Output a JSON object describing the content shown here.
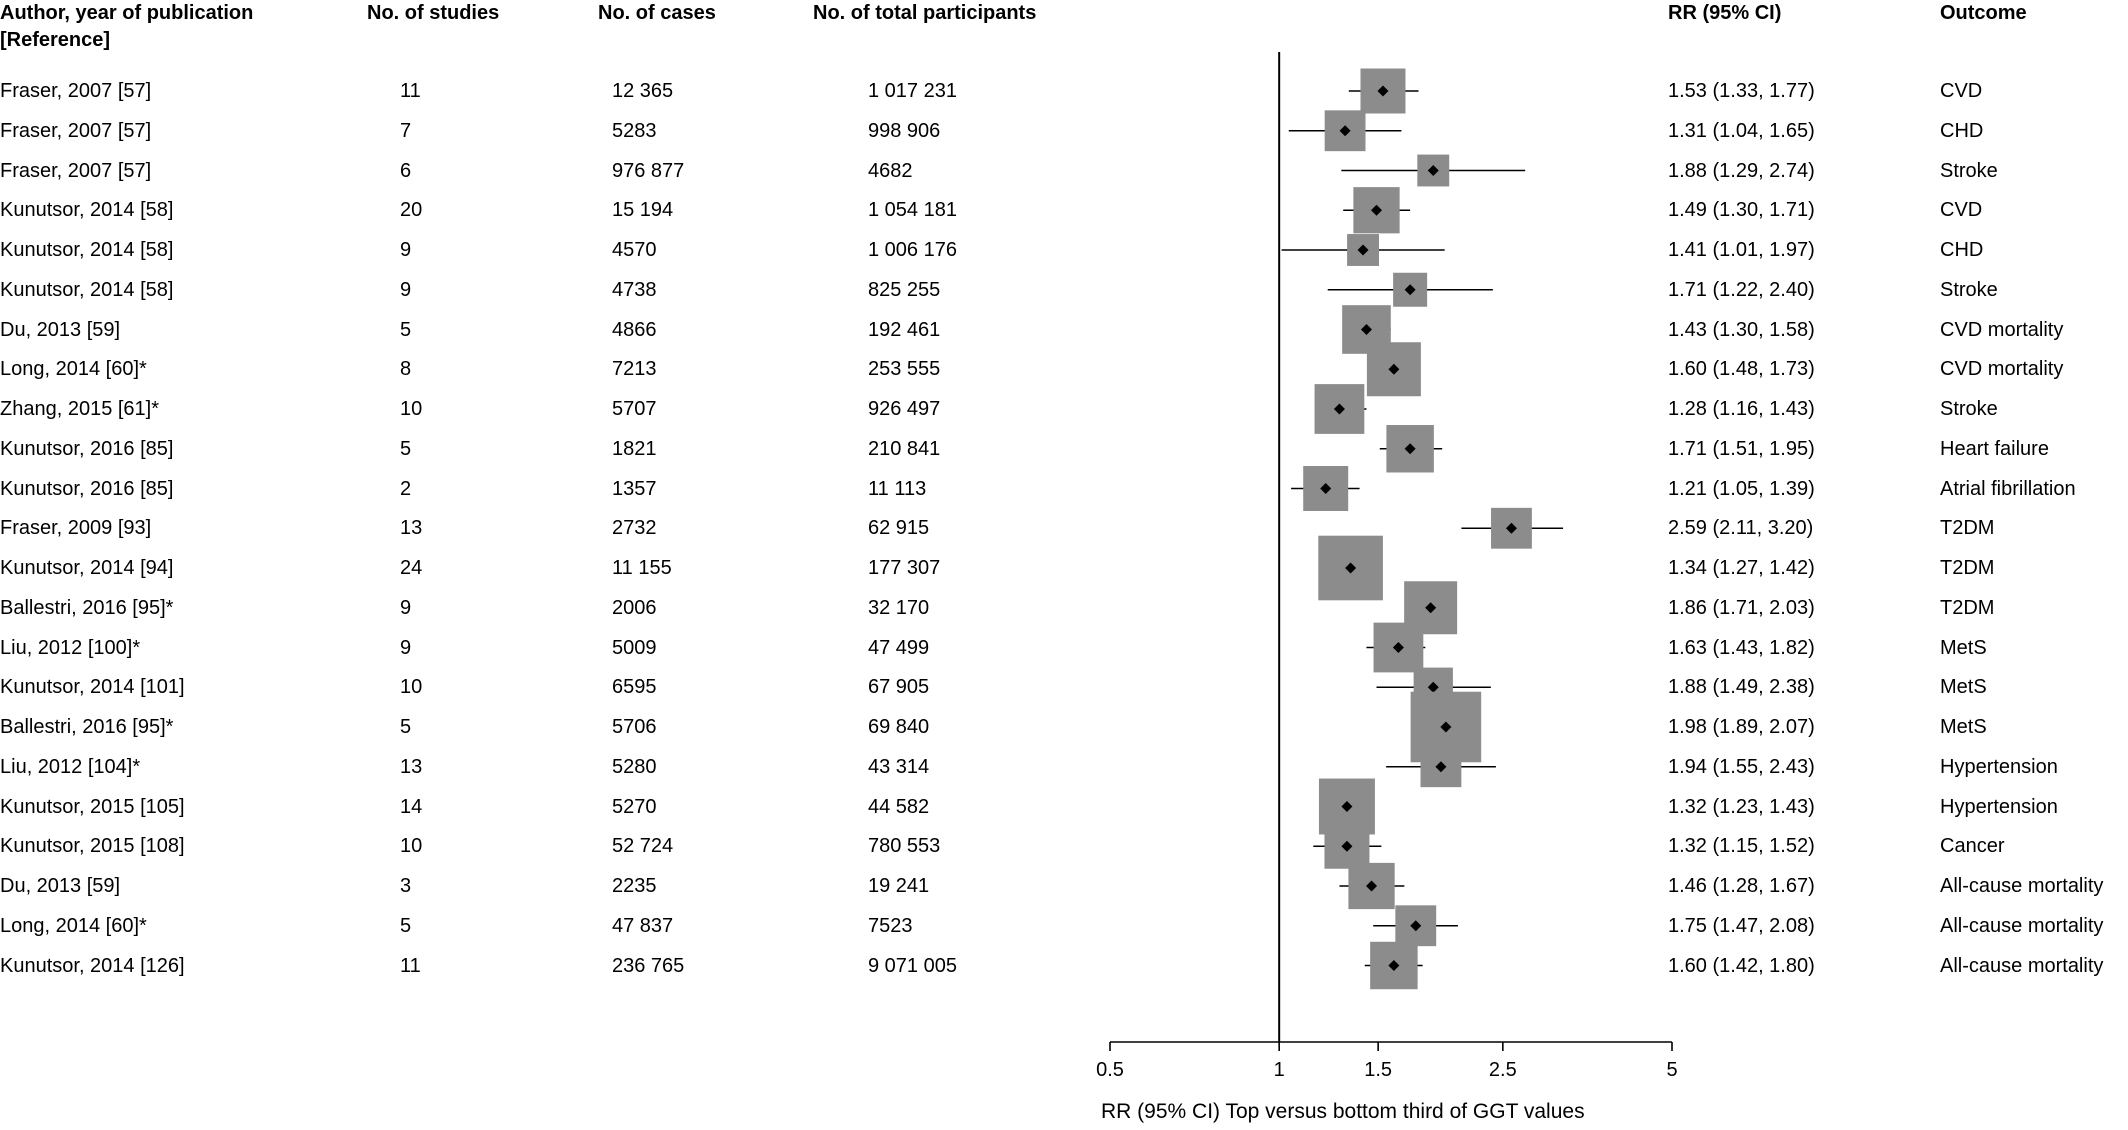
{
  "headers": {
    "author": "Author, year of publication [Reference]",
    "studies": "No. of studies",
    "cases": "No. of cases",
    "participants": "No. of total participants",
    "rr": "RR (95% CI)",
    "outcome": "Outcome"
  },
  "chart_data": {
    "type": "forest",
    "scale": "log",
    "xlim": [
      0.5,
      5
    ],
    "reference_line": 1,
    "x_ticks": [
      0.5,
      1,
      1.5,
      2.5,
      5
    ],
    "x_tick_labels": [
      "0.5",
      "1",
      "1.5",
      "2.5",
      "5"
    ],
    "xlabel": "RR (95% CI) Top versus bottom third of GGT values",
    "rows": [
      {
        "author": "Fraser, 2007 [57]",
        "studies": "11",
        "cases": "12 365",
        "participants": "1 017 231",
        "rr_text": "1.53 (1.33, 1.77)",
        "outcome": "CVD",
        "rr": 1.53,
        "lo": 1.33,
        "hi": 1.77,
        "weight": 0.6
      },
      {
        "author": "Fraser, 2007 [57]",
        "studies": "7",
        "cases": "5283",
        "participants": "998 906",
        "rr_text": "1.31 (1.04, 1.65)",
        "outcome": "CHD",
        "rr": 1.31,
        "lo": 1.04,
        "hi": 1.65,
        "weight": 0.45
      },
      {
        "author": "Fraser, 2007 [57]",
        "studies": "6",
        "cases": "976 877",
        "participants": "4682",
        "rr_text": "1.88 (1.29, 2.74)",
        "outcome": "Stroke",
        "rr": 1.88,
        "lo": 1.29,
        "hi": 2.74,
        "weight": 0.2
      },
      {
        "author": "Kunutsor, 2014 [58]",
        "studies": "20",
        "cases": "15 194",
        "participants": "1 054 181",
        "rr_text": "1.49 (1.30, 1.71)",
        "outcome": "CVD",
        "rr": 1.49,
        "lo": 1.3,
        "hi": 1.71,
        "weight": 0.65
      },
      {
        "author": "Kunutsor, 2014 [58]",
        "studies": "9",
        "cases": "4570",
        "participants": "1 006 176",
        "rr_text": "1.41 (1.01, 1.97)",
        "outcome": "CHD",
        "rr": 1.41,
        "lo": 1.01,
        "hi": 1.97,
        "weight": 0.2
      },
      {
        "author": "Kunutsor, 2014 [58]",
        "studies": "9",
        "cases": "4738",
        "participants": "825 255",
        "rr_text": "1.71 (1.22, 2.40)",
        "outcome": "Stroke",
        "rr": 1.71,
        "lo": 1.22,
        "hi": 2.4,
        "weight": 0.25
      },
      {
        "author": "Du, 2013 [59]",
        "studies": "5",
        "cases": "4866",
        "participants": "192 461",
        "rr_text": "1.43 (1.30, 1.58)",
        "outcome": "CVD mortality",
        "rr": 1.43,
        "lo": 1.3,
        "hi": 1.58,
        "weight": 0.75
      },
      {
        "author": "Long, 2014 [60]*",
        "studies": "8",
        "cases": "7213",
        "participants": "253 555",
        "rr_text": "1.60 (1.48, 1.73)",
        "outcome": "CVD mortality",
        "rr": 1.6,
        "lo": 1.48,
        "hi": 1.73,
        "weight": 1.0
      },
      {
        "author": "Zhang, 2015 [61]*",
        "studies": "10",
        "cases": "5707",
        "participants": "926 497",
        "rr_text": "1.28 (1.16, 1.43)",
        "outcome": "Stroke",
        "rr": 1.28,
        "lo": 1.16,
        "hi": 1.43,
        "weight": 0.8
      },
      {
        "author": "Kunutsor, 2016 [85]",
        "studies": "5",
        "cases": "1821",
        "participants": "210 841",
        "rr_text": "1.71 (1.51, 1.95)",
        "outcome": "Heart failure",
        "rr": 1.71,
        "lo": 1.51,
        "hi": 1.95,
        "weight": 0.7
      },
      {
        "author": "Kunutsor, 2016 [85]",
        "studies": "2",
        "cases": "1357",
        "participants": "11 113",
        "rr_text": "1.21 (1.05, 1.39)",
        "outcome": "Atrial fibrillation",
        "rr": 1.21,
        "lo": 1.05,
        "hi": 1.39,
        "weight": 0.6
      },
      {
        "author": "Fraser, 2009 [93]",
        "studies": "13",
        "cases": "2732",
        "participants": "62 915",
        "rr_text": "2.59 (2.11, 3.20)",
        "outcome": "T2DM",
        "rr": 2.59,
        "lo": 2.11,
        "hi": 3.2,
        "weight": 0.45
      },
      {
        "author": "Kunutsor, 2014 [94]",
        "studies": "24",
        "cases": "11 155",
        "participants": "177 307",
        "rr_text": "1.34 (1.27, 1.42)",
        "outcome": "T2DM",
        "rr": 1.34,
        "lo": 1.27,
        "hi": 1.42,
        "weight": 1.6
      },
      {
        "author": "Ballestri, 2016 [95]*",
        "studies": "9",
        "cases": "2006",
        "participants": "32 170",
        "rr_text": "1.86 (1.71, 2.03)",
        "outcome": "T2DM",
        "rr": 1.86,
        "lo": 1.71,
        "hi": 2.03,
        "weight": 0.95
      },
      {
        "author": "Liu, 2012 [100]*",
        "studies": "9",
        "cases": "5009",
        "participants": "47 499",
        "rr_text": "1.63 (1.43, 1.82)",
        "outcome": "MetS",
        "rr": 1.63,
        "lo": 1.43,
        "hi": 1.82,
        "weight": 0.8
      },
      {
        "author": "Kunutsor, 2014 [101]",
        "studies": "10",
        "cases": "6595",
        "participants": "67 905",
        "rr_text": "1.88 (1.49, 2.38)",
        "outcome": "MetS",
        "rr": 1.88,
        "lo": 1.49,
        "hi": 2.38,
        "weight": 0.4
      },
      {
        "author": "Ballestri, 2016 [95]*",
        "studies": "5",
        "cases": "5706",
        "participants": "69 840",
        "rr_text": "1.98 (1.89, 2.07)",
        "outcome": "MetS",
        "rr": 1.98,
        "lo": 1.89,
        "hi": 2.07,
        "weight": 2.0
      },
      {
        "author": "Liu, 2012 [104]*",
        "studies": "13",
        "cases": "5280",
        "participants": "43 314",
        "rr_text": "1.94 (1.55, 2.43)",
        "outcome": "Hypertension",
        "rr": 1.94,
        "lo": 1.55,
        "hi": 2.43,
        "weight": 0.45
      },
      {
        "author": "Kunutsor, 2015 [105]",
        "studies": "14",
        "cases": "5270",
        "participants": "44 582",
        "rr_text": "1.32 (1.23, 1.43)",
        "outcome": "Hypertension",
        "rr": 1.32,
        "lo": 1.23,
        "hi": 1.43,
        "weight": 1.1
      },
      {
        "author": "Kunutsor, 2015 [108]",
        "studies": "10",
        "cases": "52 724",
        "participants": "780 553",
        "rr_text": "1.32 (1.15, 1.52)",
        "outcome": "Cancer",
        "rr": 1.32,
        "lo": 1.15,
        "hi": 1.52,
        "weight": 0.6
      },
      {
        "author": "Du, 2013 [59]",
        "studies": "3",
        "cases": "2235",
        "participants": "19 241",
        "rr_text": "1.46 (1.28, 1.67)",
        "outcome": "All-cause mortality",
        "rr": 1.46,
        "lo": 1.28,
        "hi": 1.67,
        "weight": 0.65
      },
      {
        "author": "Long, 2014 [60]*",
        "studies": "5",
        "cases": "47 837",
        "participants": "7523",
        "rr_text": "1.75 (1.47, 2.08)",
        "outcome": "All-cause mortality",
        "rr": 1.75,
        "lo": 1.47,
        "hi": 2.08,
        "weight": 0.45
      },
      {
        "author": "Kunutsor, 2014 [126]",
        "studies": "11",
        "cases": "236 765",
        "participants": "9 071 005",
        "rr_text": "1.60 (1.42, 1.80)",
        "outcome": "All-cause mortality",
        "rr": 1.6,
        "lo": 1.42,
        "hi": 1.8,
        "weight": 0.7
      }
    ]
  }
}
